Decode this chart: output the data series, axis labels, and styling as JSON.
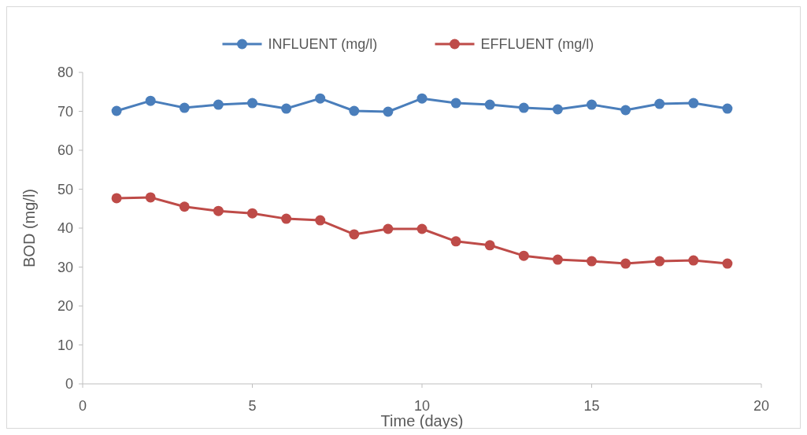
{
  "chart_data": {
    "type": "line",
    "xlabel": "Time (days)",
    "ylabel": "BOD (mg/l)",
    "x": [
      1,
      2,
      3,
      4,
      5,
      6,
      7,
      8,
      9,
      10,
      11,
      12,
      13,
      14,
      15,
      16,
      17,
      18,
      19
    ],
    "series": [
      {
        "name": "INFLUENT (mg/l)",
        "color": "#4a7ebb",
        "values": [
          70.1,
          72.7,
          70.9,
          71.7,
          72.1,
          70.7,
          73.3,
          70.1,
          69.9,
          73.3,
          72.1,
          71.7,
          70.9,
          70.5,
          71.7,
          70.3,
          71.9,
          72.1,
          70.7
        ]
      },
      {
        "name": "EFFLUENT (mg/l)",
        "color": "#be4b48",
        "values": [
          47.7,
          47.9,
          45.5,
          44.4,
          43.8,
          42.4,
          42.0,
          38.4,
          39.8,
          39.8,
          36.6,
          35.6,
          32.9,
          31.9,
          31.5,
          30.9,
          31.5,
          31.7,
          30.9
        ]
      }
    ],
    "xlim": [
      0,
      20
    ],
    "xticks": [
      0,
      5,
      10,
      15,
      20
    ],
    "ylim": [
      0,
      80
    ],
    "yticks": [
      0,
      10,
      20,
      30,
      40,
      50,
      60,
      70,
      80
    ],
    "grid": false,
    "legend": "top",
    "marker": "circle",
    "line_style": "solid"
  }
}
